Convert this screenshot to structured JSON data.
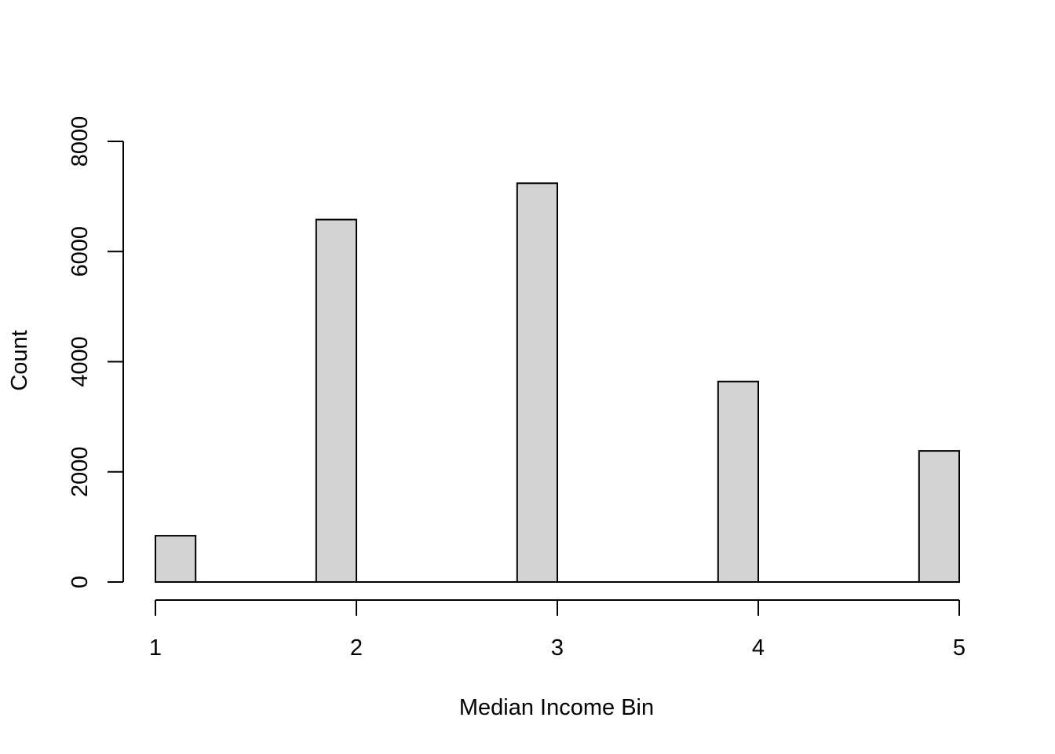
{
  "chart_data": {
    "type": "bar",
    "title": "",
    "xlabel": "Median Income Bin",
    "ylabel": "Count",
    "bins": [
      {
        "x0": 1.0,
        "x1": 1.2,
        "count": 840
      },
      {
        "x0": 1.8,
        "x1": 2.0,
        "count": 6580
      },
      {
        "x0": 2.8,
        "x1": 3.0,
        "count": 7240
      },
      {
        "x0": 3.8,
        "x1": 4.0,
        "count": 3640
      },
      {
        "x0": 4.8,
        "x1": 5.0,
        "count": 2380
      }
    ],
    "x_ticks": [
      "1",
      "2",
      "3",
      "4",
      "5"
    ],
    "y_ticks": [
      "0",
      "2000",
      "4000",
      "6000",
      "8000"
    ],
    "xlim": [
      1,
      5
    ],
    "ylim": [
      0,
      8000
    ],
    "grid": false,
    "bar_fill": "#d3d3d3",
    "bar_stroke": "#000000"
  }
}
